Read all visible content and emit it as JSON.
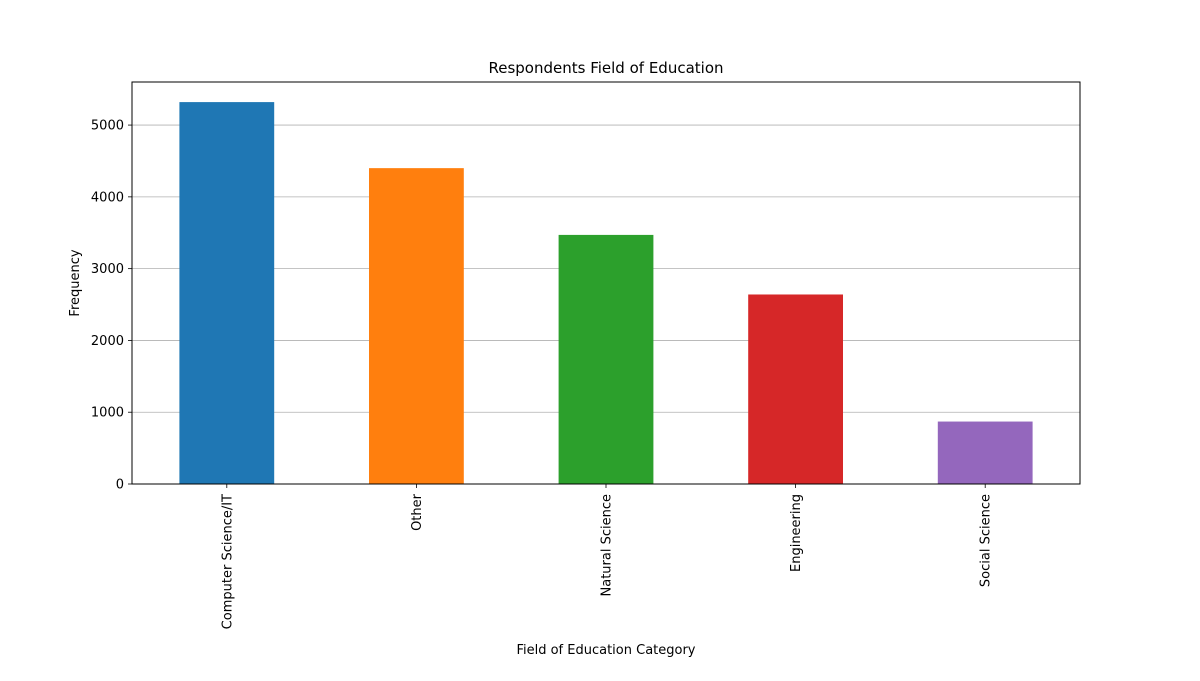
{
  "chart_data": {
    "type": "bar",
    "title": "Respondents Field of Education",
    "xlabel": "Field of Education Category",
    "ylabel": "Frequency",
    "categories": [
      "Computer Science/IT",
      "Other",
      "Natural Science",
      "Engineering",
      "Social Science"
    ],
    "values": [
      5320,
      4400,
      3470,
      2640,
      870
    ],
    "colors": [
      "#1f77b4",
      "#ff7f0e",
      "#2ca02c",
      "#d62728",
      "#9467bd"
    ],
    "ylim": [
      0,
      5600
    ],
    "yticks": [
      0,
      1000,
      2000,
      3000,
      4000,
      5000
    ],
    "grid": "y",
    "legend": "none"
  }
}
